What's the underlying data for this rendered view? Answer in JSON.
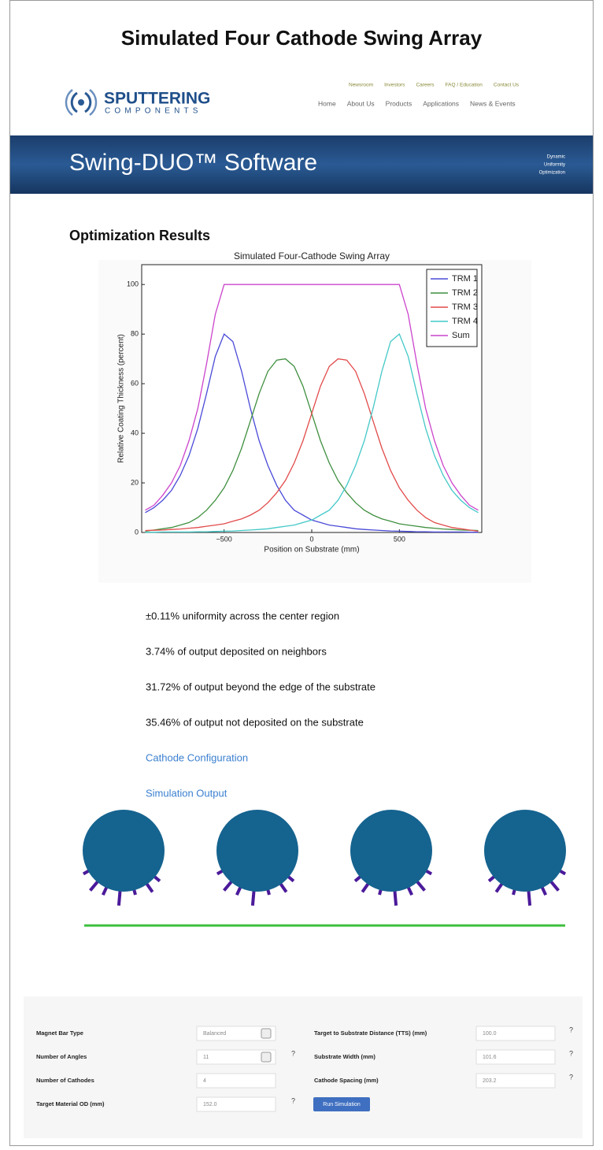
{
  "header": {
    "title": "Simulated Four Cathode Swing Array"
  },
  "site": {
    "logo": {
      "name": "SPUTTERING",
      "sub": "COMPONENTS"
    },
    "top_links": [
      "Newsroom",
      "Investors",
      "Careers",
      "FAQ / Education",
      "Contact Us"
    ],
    "nav": [
      "Home",
      "About Us",
      "Products",
      "Applications",
      "News & Events"
    ],
    "banner": {
      "title": "Swing-DUO™ Software",
      "tagline": [
        "Dynamic",
        "Uniformity",
        "Optimization"
      ]
    }
  },
  "section": {
    "heading": "Optimization Results"
  },
  "chart": {
    "type": "line",
    "title": "Simulated Four-Cathode Swing Array",
    "x_label": "Position on Substrate (mm)",
    "y_label": "Relative Coating Thickness (percent)",
    "xlim": [
      -970,
      970
    ],
    "ylim": [
      0,
      108
    ],
    "xticks": [
      {
        "value": -500,
        "label": "−500"
      },
      0,
      500
    ],
    "yticks": [
      0,
      20,
      40,
      60,
      80,
      100
    ],
    "legend": "upper right",
    "x": [
      -950,
      -900,
      -850,
      -800,
      -750,
      -700,
      -650,
      -600,
      -550,
      -500,
      -450,
      -400,
      -350,
      -300,
      -250,
      -200,
      -150,
      -100,
      -50,
      0,
      50,
      100,
      150,
      200,
      250,
      300,
      350,
      400,
      450,
      500,
      550,
      600,
      650,
      700,
      750,
      800,
      850,
      900,
      950
    ],
    "series": [
      {
        "name": "TRM 1",
        "color": "#4a4ad8",
        "values": [
          8,
          10,
          13,
          17,
          23,
          31,
          42,
          56,
          71,
          80,
          77,
          65,
          50,
          37,
          27,
          19,
          13,
          9,
          7,
          5,
          4,
          3,
          2.5,
          2,
          1.5,
          1.2,
          1,
          0.8,
          0.6,
          0.5,
          0.4,
          0.3,
          0.3,
          0.2,
          0.2,
          0.2,
          0.2,
          0.1,
          0.1
        ]
      },
      {
        "name": "TRM 2",
        "color": "#3f8f3f",
        "values": [
          0.5,
          1,
          1.5,
          2,
          3,
          4,
          6,
          9,
          13,
          18,
          25,
          34,
          45,
          56,
          65,
          69.5,
          70,
          67,
          59,
          48,
          37,
          28,
          21,
          16,
          12,
          9,
          7,
          5.5,
          4.5,
          3.5,
          3,
          2.5,
          2,
          1.7,
          1.4,
          1.2,
          1,
          0.9,
          0.8
        ]
      },
      {
        "name": "TRM 3",
        "color": "#e24a4a",
        "values": [
          0.8,
          0.9,
          1,
          1.2,
          1.4,
          1.7,
          2,
          2.5,
          3,
          3.5,
          4.5,
          5.5,
          7,
          9,
          12,
          16,
          21,
          28,
          37,
          48,
          59,
          67,
          70,
          69.5,
          65,
          56,
          45,
          34,
          25,
          18,
          13,
          9,
          6,
          4,
          3,
          2,
          1.5,
          1,
          0.5
        ]
      },
      {
        "name": "TRM 4",
        "color": "#44c8c8",
        "values": [
          0.1,
          0.1,
          0.2,
          0.2,
          0.2,
          0.2,
          0.3,
          0.3,
          0.4,
          0.5,
          0.6,
          0.8,
          1,
          1.2,
          1.5,
          2,
          2.5,
          3,
          4,
          5,
          7,
          9,
          13,
          19,
          27,
          37,
          50,
          65,
          77,
          80,
          71,
          56,
          42,
          31,
          23,
          17,
          13,
          10,
          8
        ]
      },
      {
        "name": "Sum",
        "color": "#cc44cc",
        "values": [
          9,
          11,
          15,
          20,
          27,
          37,
          50,
          68,
          88,
          100,
          100,
          100,
          100,
          100,
          100,
          100,
          100,
          100,
          100,
          100,
          100,
          100,
          100,
          100,
          100,
          100,
          100,
          100,
          100,
          100,
          88,
          68,
          50,
          37,
          27,
          20,
          15,
          11,
          9
        ]
      }
    ]
  },
  "results": [
    "±0.11% uniformity across the center region",
    "3.74% of output deposited on neighbors",
    "31.72% of output beyond the edge of the substrate",
    "35.46% of output not deposited on the substrate"
  ],
  "links": [
    "Cathode Configuration",
    "Simulation Output"
  ],
  "form": {
    "help": "?",
    "left": [
      {
        "label": "Magnet Bar Type",
        "value": "Balanced"
      },
      {
        "label": "Number of Angles",
        "value": "11"
      },
      {
        "label": "Number of Cathodes",
        "value": "4"
      },
      {
        "label": "Target Material OD (mm)",
        "value": "152.0"
      }
    ],
    "right": [
      {
        "label": "Target to Substrate Distance (TTS) (mm)",
        "value": "100.0"
      },
      {
        "label": "Substrate Width (mm)",
        "value": "101.6"
      },
      {
        "label": "Cathode Spacing (mm)",
        "value": "203.2"
      }
    ],
    "button": "Run Simulation"
  }
}
